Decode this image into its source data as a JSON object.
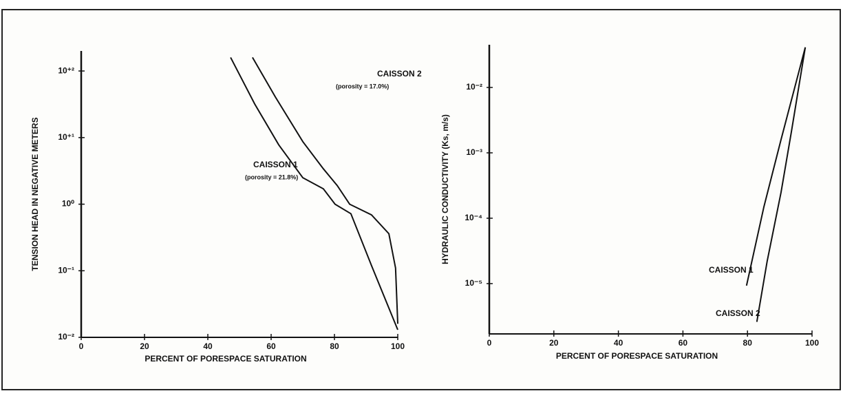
{
  "chart_data": [
    {
      "type": "line",
      "x_label": "PERCENT OF PORESPACE SATURATION",
      "y_label": "TENSION HEAD IN NEGATIVE METERS",
      "xlim": [
        0,
        100
      ],
      "xticks": [
        0,
        20,
        40,
        60,
        80,
        100
      ],
      "ylim": [
        0.01,
        200
      ],
      "log_y": true,
      "yticks": [
        {
          "value": 0.01,
          "label": "10⁻²"
        },
        {
          "value": 0.1,
          "label": "10⁻¹"
        },
        {
          "value": 1,
          "label": "10⁰"
        },
        {
          "value": 10,
          "label": "10⁺¹"
        },
        {
          "value": 100,
          "label": "10⁺²"
        }
      ],
      "series": [
        {
          "name": "CAISSON 1",
          "color": "#111111",
          "x": [
            47.2,
            54.8,
            62.4,
            70,
            76.5,
            80.2,
            85.2,
            91.7,
            100
          ],
          "values": [
            160,
            32,
            7.8,
            2.5,
            1.7,
            1.0,
            0.72,
            0.12,
            0.013
          ]
        },
        {
          "name": "CAISSON 2",
          "color": "#111111",
          "x": [
            54.1,
            61.3,
            70,
            76.5,
            80.9,
            84.8,
            91.7,
            97.2,
            99.3,
            100
          ],
          "values": [
            160,
            41,
            8.7,
            3.4,
            1.9,
            1.0,
            0.69,
            0.36,
            0.11,
            0.016
          ]
        }
      ],
      "annotations": [
        "(porosity = 21.8%)",
        "(porosity = 17.0%)"
      ]
    },
    {
      "type": "line",
      "x_label": "PERCENT OF PORESPACE SATURATION",
      "y_label": "HYDRAULIC CONDUCTIVITY (Ks, m/s)",
      "xlim": [
        0,
        100
      ],
      "xticks": [
        0,
        20,
        40,
        60,
        80,
        100
      ],
      "ylim": [
        1.7e-06,
        0.045
      ],
      "log_y": true,
      "yticks": [
        {
          "value": 1e-05,
          "label": "10⁻⁵"
        },
        {
          "value": 0.0001,
          "label": "10⁻⁴"
        },
        {
          "value": 0.001,
          "label": "10⁻³"
        },
        {
          "value": 0.01,
          "label": "10⁻²"
        }
      ],
      "series": [
        {
          "name": "CAISSON 1",
          "color": "#111111",
          "x": [
            79.7,
            85.1,
            90.4,
            97.9
          ],
          "values": [
            9.3e-06,
            0.00015,
            0.0016,
            0.041
          ]
        },
        {
          "name": "CAISSON 2",
          "color": "#111111",
          "x": [
            82.9,
            86.1,
            90.4,
            93.6,
            97.9
          ],
          "values": [
            2.6e-06,
            2.2e-05,
            0.00025,
            0.0021,
            0.041
          ]
        }
      ]
    }
  ]
}
